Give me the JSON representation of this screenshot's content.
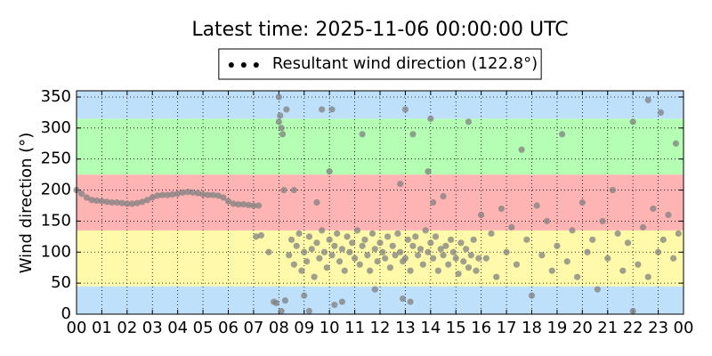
{
  "chart_data": {
    "type": "scatter",
    "title": "Latest time: 2025-11-06 00:00:00 UTC",
    "ylabel": "Wind direction (°)",
    "legend_loc": "upper center",
    "grid": true,
    "xlim": [
      0,
      24
    ],
    "ylim": [
      0,
      360
    ],
    "xticks": [
      {
        "value": 0,
        "label": "00"
      },
      {
        "value": 1,
        "label": "01"
      },
      {
        "value": 2,
        "label": "02"
      },
      {
        "value": 3,
        "label": "03"
      },
      {
        "value": 4,
        "label": "04"
      },
      {
        "value": 5,
        "label": "05"
      },
      {
        "value": 6,
        "label": "06"
      },
      {
        "value": 7,
        "label": "07"
      },
      {
        "value": 8,
        "label": "08"
      },
      {
        "value": 9,
        "label": "09"
      },
      {
        "value": 10,
        "label": "10"
      },
      {
        "value": 11,
        "label": "11"
      },
      {
        "value": 12,
        "label": "12"
      },
      {
        "value": 13,
        "label": "13"
      },
      {
        "value": 14,
        "label": "14"
      },
      {
        "value": 15,
        "label": "15"
      },
      {
        "value": 16,
        "label": "16"
      },
      {
        "value": 17,
        "label": "17"
      },
      {
        "value": 18,
        "label": "18"
      },
      {
        "value": 19,
        "label": "19"
      },
      {
        "value": 20,
        "label": "20"
      },
      {
        "value": 21,
        "label": "21"
      },
      {
        "value": 22,
        "label": "22"
      },
      {
        "value": 23,
        "label": "23"
      },
      {
        "value": 24,
        "label": "00"
      }
    ],
    "yticks": [
      0,
      50,
      100,
      150,
      200,
      250,
      300,
      350
    ],
    "bands": [
      {
        "from": 0,
        "to": 45,
        "color": "#bfe0fb"
      },
      {
        "from": 45,
        "to": 135,
        "color": "#fffaaa"
      },
      {
        "from": 135,
        "to": 225,
        "color": "#ffb4b4"
      },
      {
        "from": 225,
        "to": 315,
        "color": "#b4ffb4"
      },
      {
        "from": 315,
        "to": 360,
        "color": "#bfe0fb"
      }
    ],
    "series": [
      {
        "name": "Resultant wind direction (122.8°)",
        "color": "#808080",
        "x": [
          0,
          0.2,
          0.4,
          0.6,
          0.8,
          1.0,
          1.2,
          1.4,
          1.6,
          1.8,
          2.0,
          2.2,
          2.4,
          2.6,
          2.8,
          3.0,
          3.2,
          3.4,
          3.6,
          3.8,
          4.0,
          4.2,
          4.4,
          4.6,
          4.8,
          5.0,
          5.2,
          5.4,
          5.6,
          5.8,
          6.0,
          6.2,
          6.4,
          6.6,
          6.8,
          7.0,
          7.2,
          7.1,
          7.3,
          7.6,
          7.8,
          7.9,
          8.0,
          8.05,
          8.1,
          8.15,
          8.2,
          8.25,
          8.3,
          8.0,
          8.1,
          8.4,
          8.5,
          8.6,
          8.7,
          8.8,
          8.9,
          9.0,
          9.1,
          9.2,
          9.3,
          9.4,
          9.5,
          9.6,
          9.7,
          9.8,
          9.9,
          10.0,
          10.1,
          10.2,
          10.3,
          10.4,
          10.5,
          10.6,
          10.7,
          10.8,
          10.9,
          11.0,
          11.1,
          11.2,
          11.3,
          11.4,
          11.5,
          11.6,
          11.7,
          11.8,
          11.9,
          12.0,
          12.1,
          12.2,
          12.3,
          12.4,
          12.5,
          12.6,
          12.7,
          12.8,
          12.9,
          13.0,
          13.1,
          13.2,
          13.3,
          13.4,
          13.5,
          13.6,
          13.7,
          13.8,
          13.9,
          14.0,
          14.1,
          14.2,
          14.3,
          14.4,
          14.5,
          14.6,
          14.7,
          14.8,
          14.9,
          15.0,
          15.1,
          15.2,
          15.3,
          15.4,
          15.5,
          15.6,
          15.7,
          15.8,
          15.9,
          8.6,
          9.0,
          9.5,
          9.7,
          10.0,
          10.1,
          10.5,
          11.3,
          12.8,
          13.0,
          13.3,
          13.9,
          14.0,
          14.1,
          15.5,
          9.2,
          10.2,
          11.8,
          12.9,
          13.2,
          14.5,
          16.0,
          16.2,
          16.4,
          16.6,
          16.8,
          17.0,
          17.2,
          17.4,
          17.6,
          17.8,
          18.0,
          18.2,
          18.4,
          18.6,
          18.8,
          19.0,
          19.2,
          19.4,
          19.6,
          19.8,
          20.0,
          20.2,
          20.4,
          20.6,
          20.8,
          21.0,
          21.2,
          21.4,
          21.6,
          21.8,
          22.0,
          22.2,
          22.4,
          22.6,
          22.8,
          23.0,
          23.2,
          23.4,
          23.6,
          23.8,
          22.6,
          23.1,
          23.7,
          22.0
        ],
        "values": [
          200,
          194,
          188,
          184,
          183,
          182,
          181,
          180,
          180,
          179,
          178,
          178,
          179,
          181,
          184,
          188,
          191,
          192,
          192,
          193,
          194,
          196,
          197,
          196,
          195,
          193,
          192,
          192,
          191,
          188,
          182,
          178,
          177,
          177,
          176,
          175,
          175,
          125,
          127,
          100,
          20,
          18,
          350,
          320,
          300,
          290,
          200,
          22,
          330,
          310,
          5,
          95,
          120,
          80,
          110,
          130,
          70,
          100,
          85,
          125,
          105,
          60,
          115,
          90,
          135,
          100,
          75,
          120,
          95,
          110,
          130,
          85,
          105,
          70,
          125,
          100,
          115,
          90,
          135,
          80,
          110,
          120,
          95,
          70,
          130,
          105,
          85,
          115,
          100,
          90,
          125,
          75,
          110,
          95,
          130,
          100,
          85,
          90,
          120,
          70,
          110,
          125,
          95,
          105,
          80,
          135,
          100,
          115,
          90,
          125,
          70,
          105,
          95,
          110,
          80,
          120,
          100,
          90,
          65,
          115,
          85,
          105,
          75,
          95,
          120,
          70,
          90,
          200,
          30,
          180,
          330,
          230,
          330,
          20,
          290,
          210,
          330,
          290,
          230,
          315,
          180,
          310,
          5,
          15,
          40,
          25,
          20,
          190,
          160,
          90,
          130,
          60,
          170,
          100,
          140,
          80,
          265,
          120,
          30,
          175,
          95,
          150,
          70,
          110,
          290,
          85,
          135,
          60,
          180,
          100,
          120,
          40,
          150,
          90,
          200,
          130,
          70,
          115,
          310,
          80,
          140,
          60,
          170,
          100,
          120,
          160,
          90,
          130,
          345,
          325,
          275,
          5
        ]
      }
    ]
  }
}
